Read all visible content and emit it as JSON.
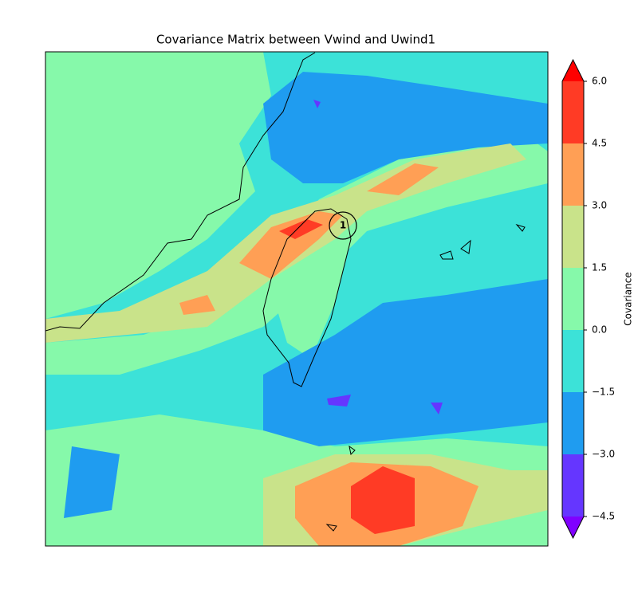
{
  "chart_data": {
    "type": "contour",
    "title": "Covariance Matrix between Vwind and Uwind1",
    "annotation": "1",
    "colorbar": {
      "label": "Covariance",
      "lim": [
        -4.5,
        6
      ],
      "ticks": [
        {
          "value": -4.5,
          "label": "−4.5"
        },
        {
          "value": -3,
          "label": "−3.0"
        },
        {
          "value": -1.5,
          "label": "−1.5"
        },
        {
          "value": 0,
          "label": "0.0"
        },
        {
          "value": 1.5,
          "label": "1.5"
        },
        {
          "value": 3,
          "label": "3.0"
        },
        {
          "value": 4.5,
          "label": "4.5"
        },
        {
          "value": 6,
          "label": "6.0"
        }
      ],
      "colors": [
        "#6536ff",
        "#1f9cf0",
        "#3ce2d8",
        "#86f9aa",
        "#c9e38a",
        "#ff9f55",
        "#ff3b25"
      ],
      "under_color": "#8000ff",
      "over_color": "#ff0000"
    }
  }
}
